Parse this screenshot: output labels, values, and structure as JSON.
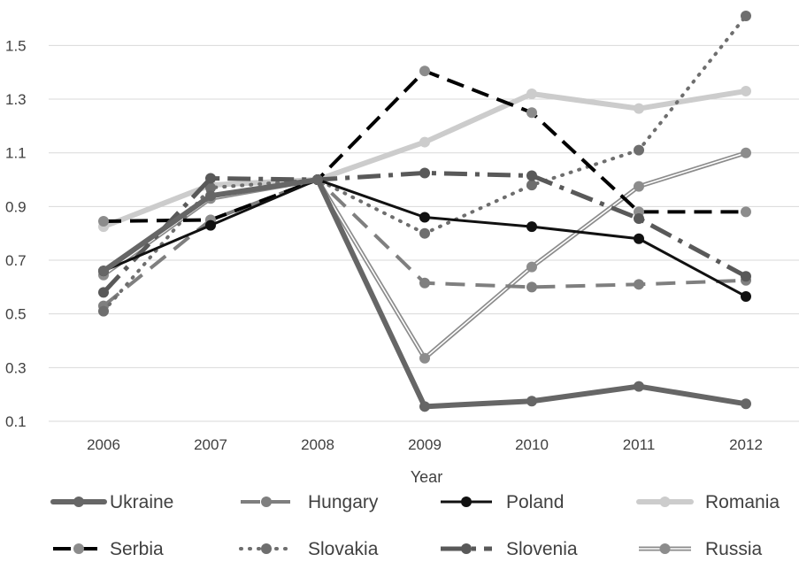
{
  "chart_data": {
    "type": "line",
    "title": "",
    "xlabel": "Year",
    "ylabel": "",
    "categories": [
      "2006",
      "2007",
      "2008",
      "2009",
      "2010",
      "2011",
      "2012"
    ],
    "ylim": [
      0.1,
      1.6
    ],
    "yticks": [
      "0.1",
      "0.3",
      "0.5",
      "0.7",
      "0.9",
      "1.1",
      "1.3",
      "1.5"
    ],
    "grid": true,
    "legend_position": "bottom",
    "series": [
      {
        "name": "Ukraine",
        "values": [
          0.66,
          0.94,
          1.0,
          0.155,
          0.175,
          0.23,
          0.165
        ],
        "color": "#666666",
        "style": "solid-thick"
      },
      {
        "name": "Hungary",
        "values": [
          0.53,
          0.85,
          1.0,
          0.615,
          0.6,
          0.61,
          0.625
        ],
        "color": "#7f7f7f",
        "style": "dash"
      },
      {
        "name": "Poland",
        "values": [
          0.66,
          0.83,
          1.0,
          0.86,
          0.825,
          0.78,
          0.565
        ],
        "color": "#111111",
        "style": "solid"
      },
      {
        "name": "Romania",
        "values": [
          0.825,
          0.98,
          1.0,
          1.14,
          1.32,
          1.265,
          1.33
        ],
        "color": "#cccccc",
        "style": "solid-thick"
      },
      {
        "name": "Serbia",
        "values": [
          0.845,
          0.85,
          1.0,
          1.405,
          1.25,
          0.88,
          0.88
        ],
        "color": "#000000",
        "style": "dash-outline"
      },
      {
        "name": "Slovakia",
        "values": [
          0.51,
          0.97,
          1.0,
          0.8,
          0.98,
          1.11,
          1.61
        ],
        "color": "#6e6e6e",
        "style": "dot"
      },
      {
        "name": "Slovenia",
        "values": [
          0.58,
          1.005,
          1.0,
          1.025,
          1.015,
          0.855,
          0.64
        ],
        "color": "#595959",
        "style": "dashdot"
      },
      {
        "name": "Russia",
        "values": [
          0.645,
          0.93,
          1.0,
          0.335,
          0.675,
          0.975,
          1.1
        ],
        "color": "#8c8c8c",
        "style": "double"
      }
    ]
  }
}
